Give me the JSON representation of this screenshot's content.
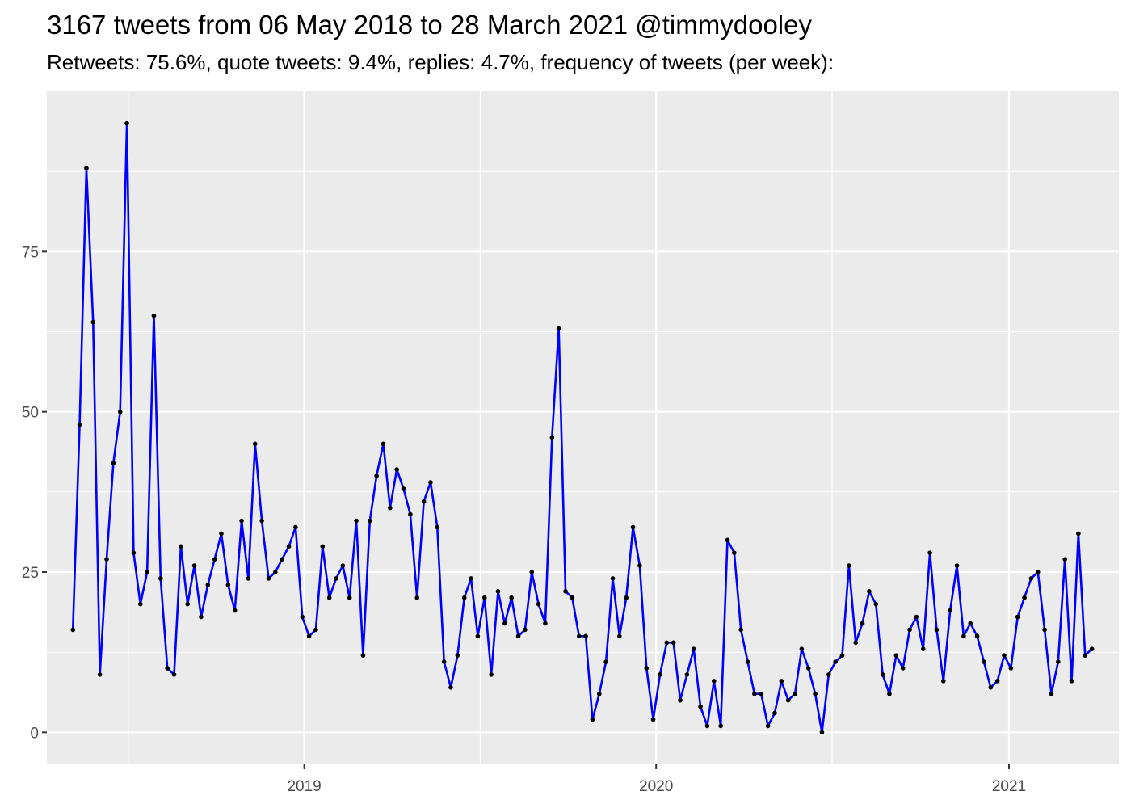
{
  "chart_data": {
    "type": "line",
    "title": "3167 tweets from 06 May 2018 to 28 March 2021 @timmydooley",
    "subtitle": "Retweets: 75.6%, quote tweets: 9.4%, replies: 4.7%, frequency of tweets (per week):",
    "xlabel": "",
    "ylabel": "",
    "x_start": "2018-05-06",
    "x_step_days": 7,
    "xlim": [
      "2018-04-09",
      "2021-04-25"
    ],
    "ylim": [
      -5,
      100
    ],
    "x_ticks": [
      {
        "date": "2019-01-01",
        "label": "2019"
      },
      {
        "date": "2020-01-01",
        "label": "2020"
      },
      {
        "date": "2021-01-01",
        "label": "2021"
      }
    ],
    "y_ticks": [
      0,
      25,
      50,
      75
    ],
    "grid": true,
    "line_color": "#0000ff",
    "point_color": "#000000",
    "panel_color": "#ebebeb",
    "series": [
      {
        "values": [
          16,
          48,
          88,
          64,
          9,
          27,
          42,
          50,
          95,
          28,
          20,
          25,
          65,
          24,
          10,
          9,
          29,
          20,
          26,
          18,
          23,
          27,
          31,
          23,
          19,
          33,
          24,
          45,
          33,
          24,
          25,
          27,
          29,
          32,
          18,
          15,
          16,
          29,
          21,
          24,
          26,
          21,
          33,
          12,
          33,
          40,
          45,
          35,
          41,
          38,
          34,
          21,
          36,
          39,
          32,
          11,
          7,
          12,
          21,
          24,
          15,
          21,
          9,
          22,
          17,
          21,
          15,
          16,
          25,
          20,
          17,
          46,
          63,
          22,
          21,
          15,
          15,
          2,
          6,
          11,
          24,
          15,
          21,
          32,
          26,
          10,
          2,
          9,
          14,
          14,
          5,
          9,
          13,
          4,
          1,
          8,
          1,
          30,
          28,
          16,
          11,
          6,
          6,
          1,
          3,
          8,
          5,
          6,
          13,
          10,
          6,
          0,
          9,
          11,
          12,
          26,
          14,
          17,
          22,
          20,
          9,
          6,
          12,
          10,
          16,
          18,
          13,
          28,
          16,
          8,
          19,
          26,
          15,
          17,
          15,
          11,
          7,
          8,
          12,
          10,
          18,
          21,
          24,
          25,
          16,
          6,
          11,
          27,
          8,
          31,
          12,
          13
        ]
      }
    ]
  }
}
